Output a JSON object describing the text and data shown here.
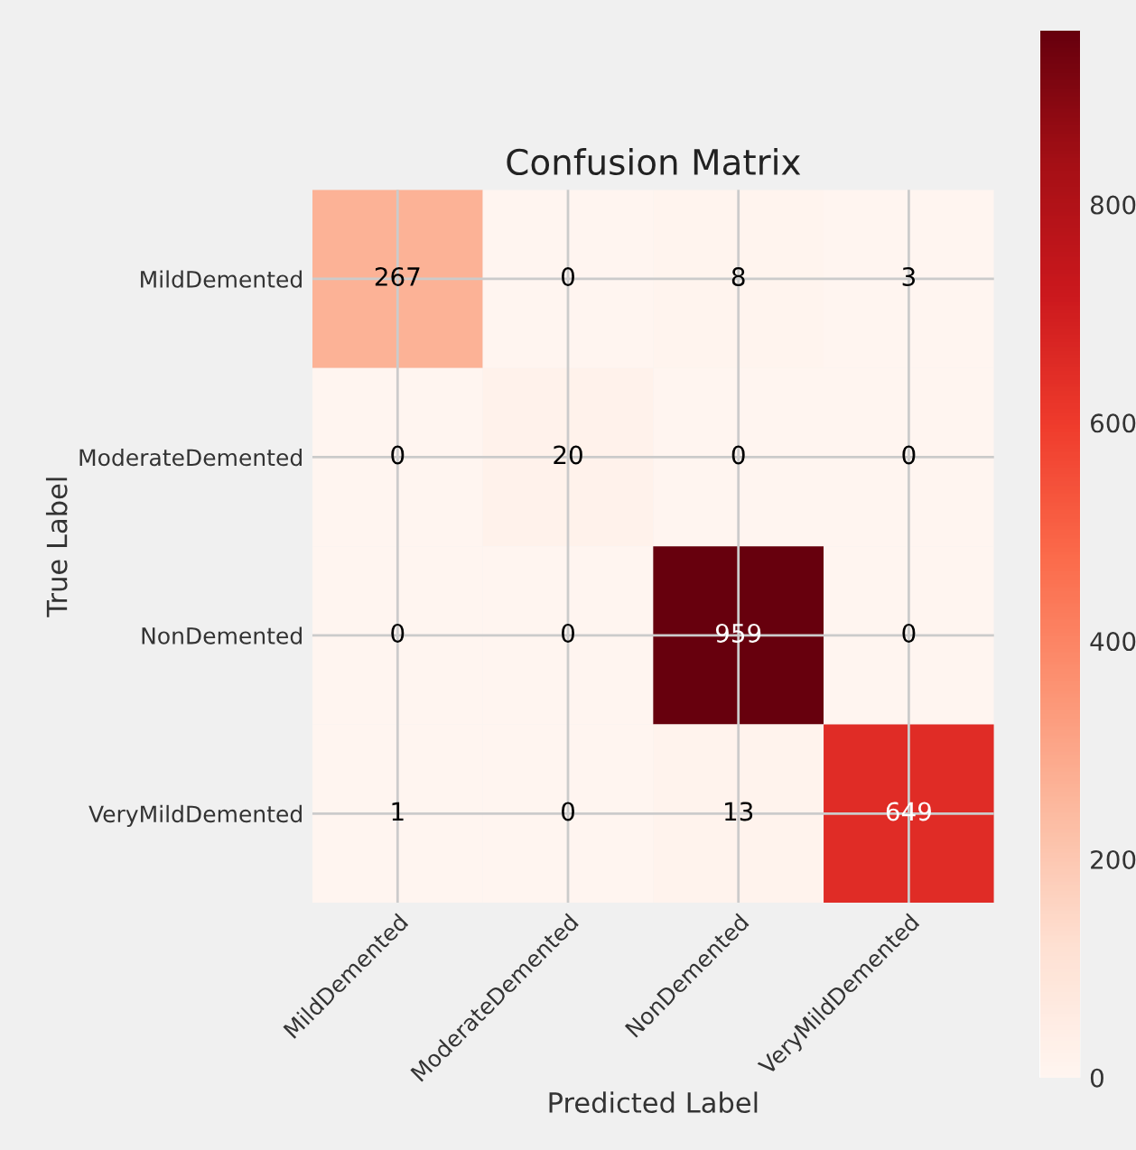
{
  "chart_data": {
    "type": "heatmap",
    "title": "Confusion Matrix",
    "xlabel": "Predicted Label",
    "ylabel": "True Label",
    "categories": [
      "MildDemented",
      "ModerateDemented",
      "NonDemented",
      "VeryMildDemented"
    ],
    "y_categories": [
      "MildDemented",
      "ModerateDemented",
      "NonDemented",
      "VeryMildDemented"
    ],
    "cells": [
      [
        267,
        0,
        8,
        3
      ],
      [
        0,
        20,
        0,
        0
      ],
      [
        0,
        0,
        959,
        0
      ],
      [
        1,
        0,
        13,
        649
      ]
    ],
    "clim": [
      0,
      959
    ],
    "cticks": [
      0,
      200,
      400,
      600,
      800
    ],
    "data_labels": true,
    "grid": true
  }
}
